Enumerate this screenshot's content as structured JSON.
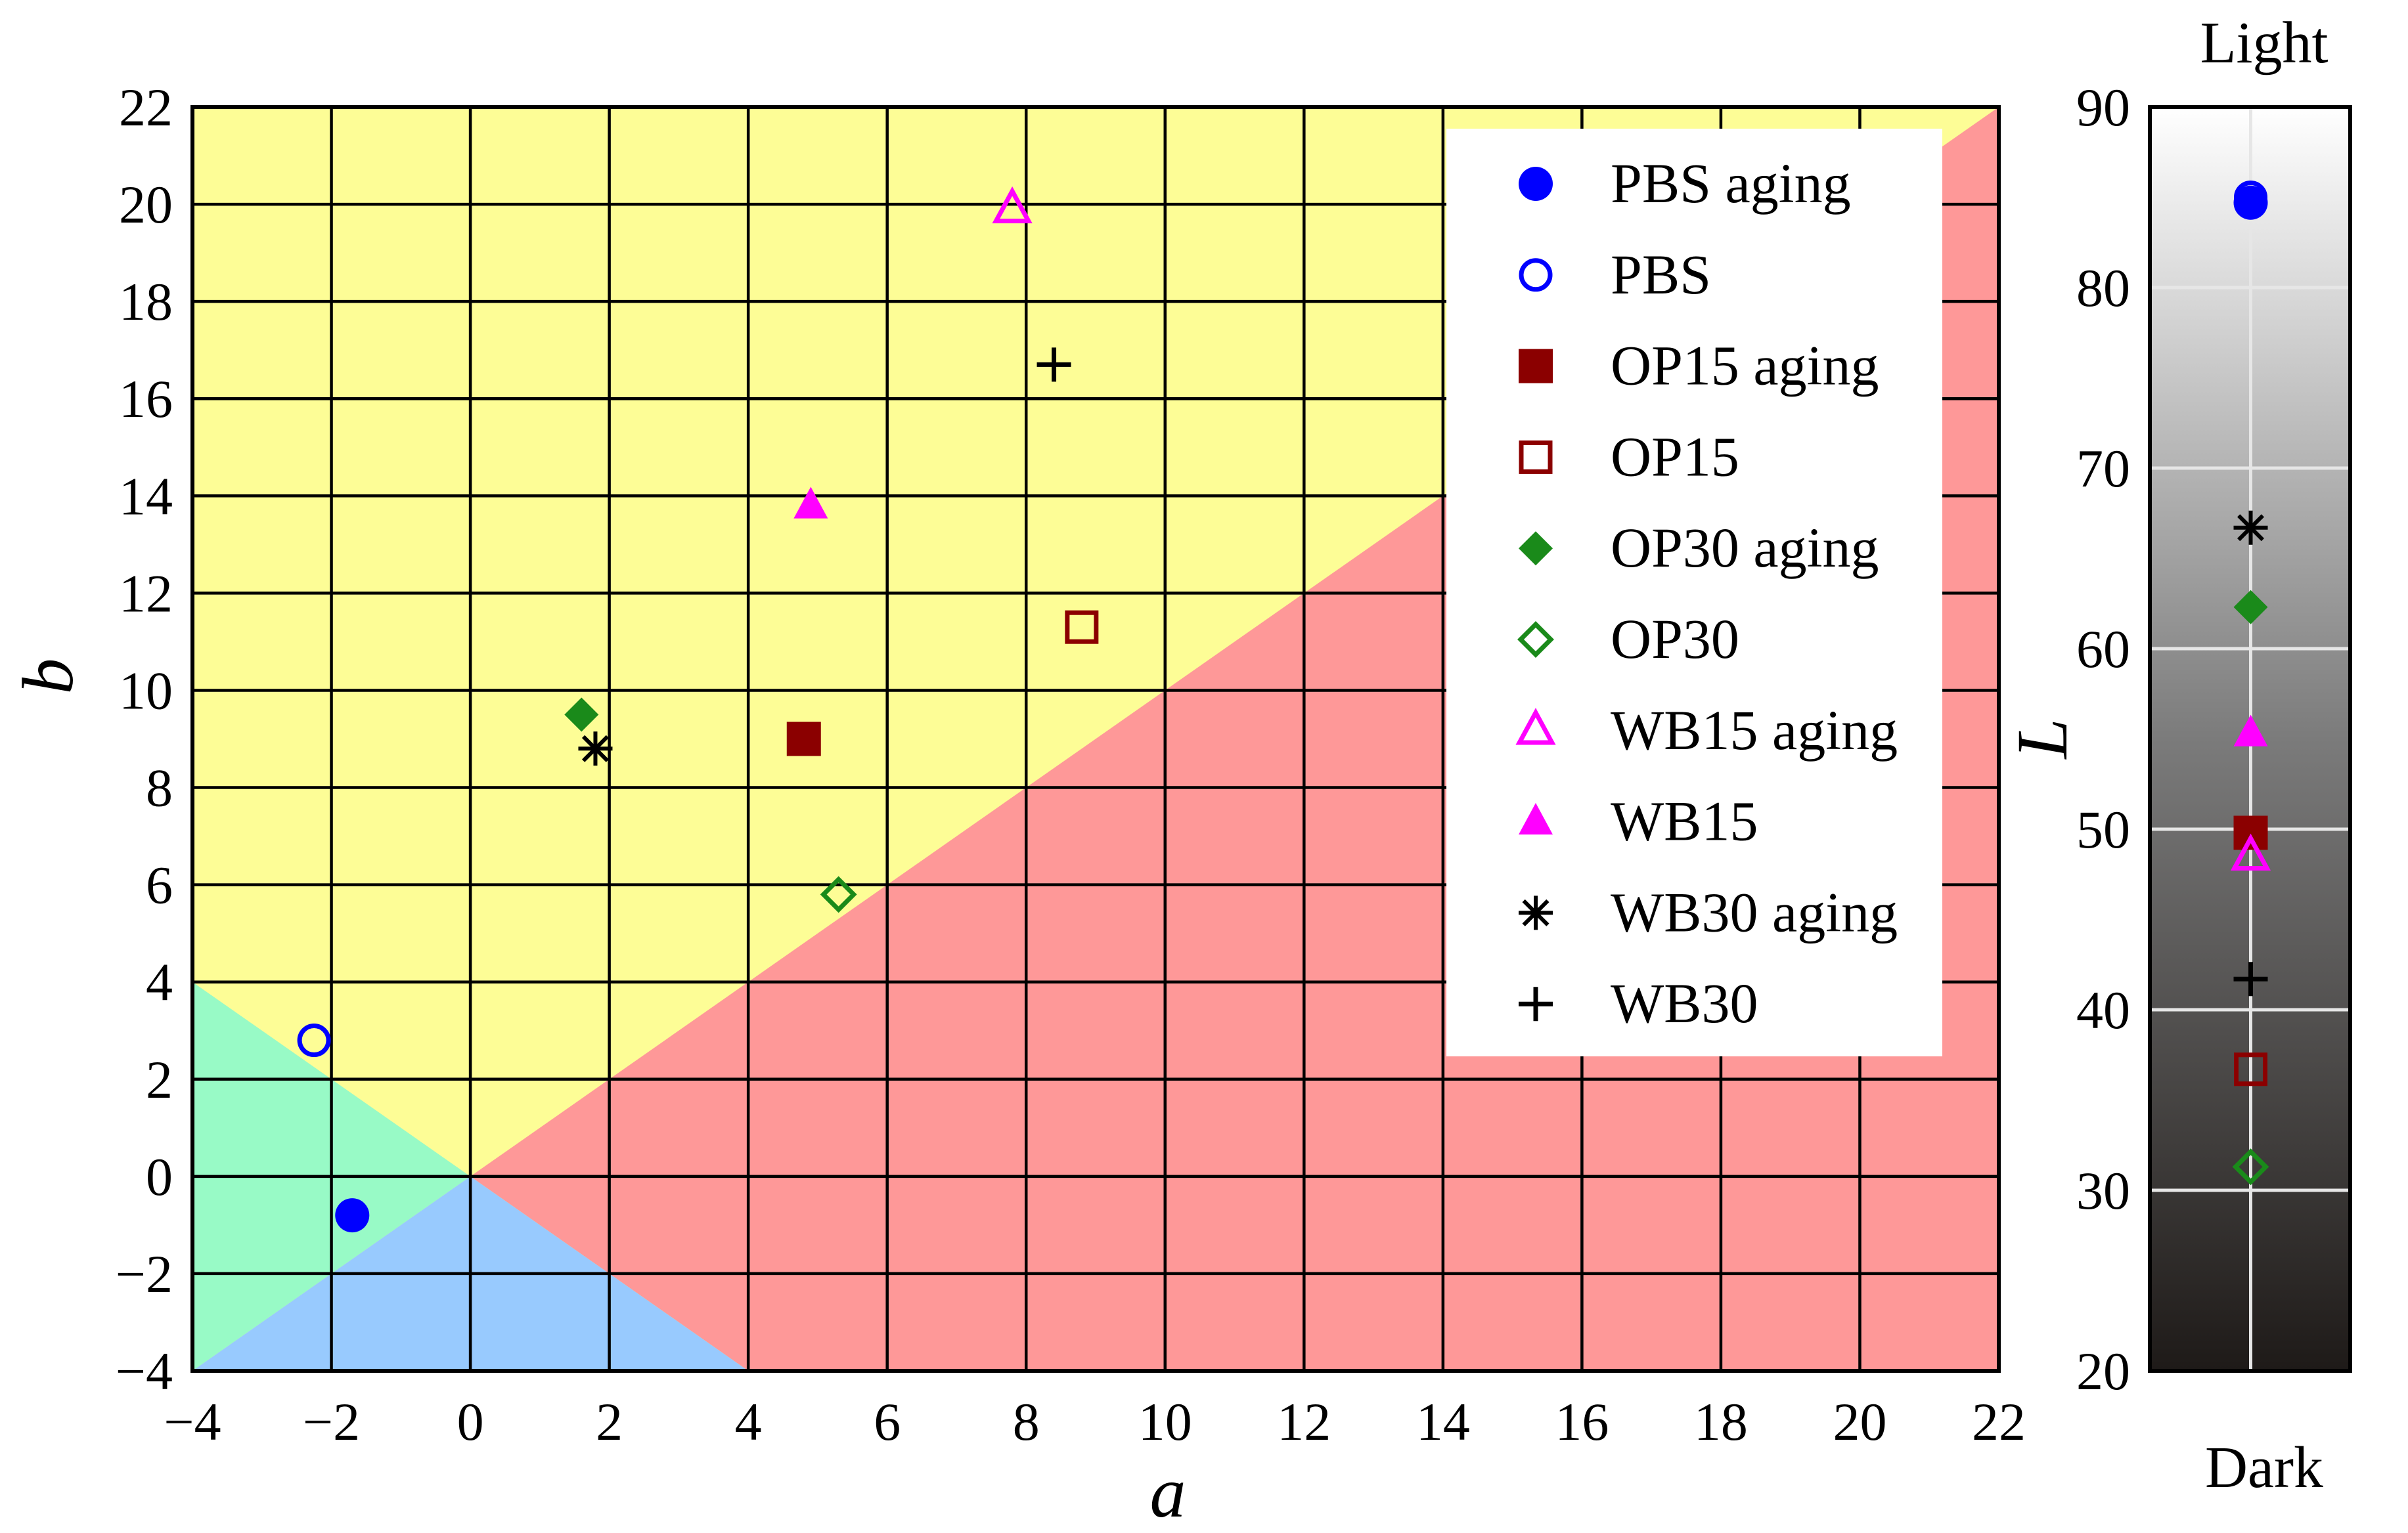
{
  "chart_data": [
    {
      "type": "scatter",
      "title": "",
      "xlabel": "a",
      "ylabel": "b",
      "xlim": [
        -4,
        22
      ],
      "ylim": [
        -4,
        22
      ],
      "x_ticks": [
        "−4",
        "−2",
        "0",
        "2",
        "4",
        "6",
        "8",
        "10",
        "12",
        "14",
        "16",
        "18",
        "20",
        "22"
      ],
      "y_ticks": [
        "−4",
        "−2",
        "0",
        "2",
        "4",
        "6",
        "8",
        "10",
        "12",
        "14",
        "16",
        "18",
        "20",
        "22"
      ],
      "grid": true,
      "legend_position": "top-right",
      "regions": [
        {
          "name": "yellow",
          "color": "#fdfd96"
        },
        {
          "name": "red",
          "color": "#fe9898"
        },
        {
          "name": "green",
          "color": "#98fac6"
        },
        {
          "name": "blue",
          "color": "#98cafe"
        }
      ],
      "series": [
        {
          "name": "PBS aging",
          "marker": "circle-filled",
          "color": "#0000ff",
          "x": -1.7,
          "y": -0.8
        },
        {
          "name": "PBS",
          "marker": "circle-open",
          "color": "#0000ff",
          "x": -2.25,
          "y": 2.8
        },
        {
          "name": "OP15 aging",
          "marker": "square-filled",
          "color": "#8b0000",
          "x": 4.8,
          "y": 9.0
        },
        {
          "name": "OP15",
          "marker": "square-open",
          "color": "#8b0000",
          "x": 8.8,
          "y": 11.3
        },
        {
          "name": "OP30 aging",
          "marker": "diamond-filled",
          "color": "#1a8a1a",
          "x": 1.6,
          "y": 9.5
        },
        {
          "name": "OP30",
          "marker": "diamond-open",
          "color": "#1a8a1a",
          "x": 5.3,
          "y": 5.8
        },
        {
          "name": "WB15 aging",
          "marker": "triangle-open",
          "color": "#ff00ff",
          "x": 7.8,
          "y": 19.9
        },
        {
          "name": "WB15",
          "marker": "triangle-filled",
          "color": "#ff00ff",
          "x": 4.9,
          "y": 13.8
        },
        {
          "name": "WB30 aging",
          "marker": "asterisk",
          "color": "#000000",
          "x": 1.8,
          "y": 8.8
        },
        {
          "name": "WB30",
          "marker": "plus",
          "color": "#000000",
          "x": 8.4,
          "y": 16.7
        }
      ]
    },
    {
      "type": "scatter",
      "title": "",
      "top_label": "Light",
      "bottom_label": "Dark",
      "ylabel": "L",
      "ylim": [
        20,
        90
      ],
      "y_ticks": [
        "20",
        "30",
        "40",
        "50",
        "60",
        "70",
        "80",
        "90"
      ],
      "grid": true,
      "series": [
        {
          "name": "PBS aging",
          "L": 84.7
        },
        {
          "name": "PBS",
          "L": 85.0
        },
        {
          "name": "OP15 aging",
          "L": 49.8
        },
        {
          "name": "OP15",
          "L": 36.7
        },
        {
          "name": "OP30 aging",
          "L": 62.3
        },
        {
          "name": "OP30",
          "L": 31.3
        },
        {
          "name": "WB15 aging",
          "L": 48.5
        },
        {
          "name": "WB15",
          "L": 55.3
        },
        {
          "name": "WB30 aging",
          "L": 66.7
        },
        {
          "name": "WB30",
          "L": 41.7
        }
      ]
    }
  ]
}
